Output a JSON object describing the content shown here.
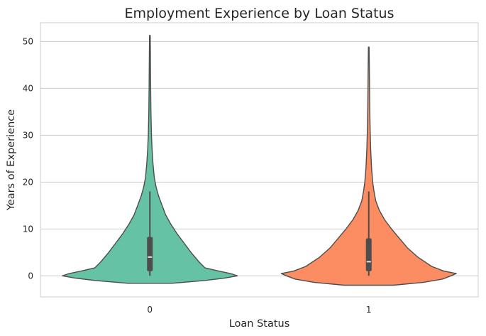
{
  "chart_data": {
    "type": "violin",
    "title": "Employment Experience by Loan Status",
    "xlabel": "Loan Status",
    "ylabel": "Years of Experience",
    "categories": [
      "0",
      "1"
    ],
    "ylim": [
      -4.5,
      54
    ],
    "yticks": [
      0,
      10,
      20,
      30,
      40,
      50
    ],
    "grid": true,
    "colors": [
      "#66c2a5",
      "#fc8d62"
    ],
    "outline_color": "#4d4d4d",
    "violins": [
      {
        "category": "0",
        "min": -1.6,
        "max": 51.3,
        "q1": 1,
        "median": 4,
        "q3": 8.3,
        "whisker_low": 0,
        "whisker_high": 18,
        "profile": [
          [
            -1.6,
            0.25
          ],
          [
            -1.0,
            0.62
          ],
          [
            -0.5,
            0.85
          ],
          [
            0.0,
            1.0
          ],
          [
            0.5,
            0.92
          ],
          [
            1.0,
            0.79
          ],
          [
            1.7,
            0.63
          ],
          [
            3,
            0.56
          ],
          [
            5,
            0.47
          ],
          [
            7,
            0.39
          ],
          [
            9,
            0.31
          ],
          [
            11,
            0.24
          ],
          [
            13,
            0.18
          ],
          [
            15,
            0.14
          ],
          [
            17,
            0.1
          ],
          [
            19,
            0.07
          ],
          [
            21,
            0.05
          ],
          [
            24,
            0.035
          ],
          [
            27,
            0.025
          ],
          [
            30,
            0.018
          ],
          [
            35,
            0.012
          ],
          [
            40,
            0.009
          ],
          [
            45,
            0.007
          ],
          [
            51.3,
            0.004
          ]
        ]
      },
      {
        "category": "1",
        "min": -2.0,
        "max": 48.8,
        "q1": 1,
        "median": 3,
        "q3": 8,
        "whisker_low": 0,
        "whisker_high": 18,
        "profile": [
          [
            -2.0,
            0.28
          ],
          [
            -1.4,
            0.62
          ],
          [
            -0.7,
            0.84
          ],
          [
            0.0,
            0.94
          ],
          [
            0.5,
            1.0
          ],
          [
            1.0,
            0.86
          ],
          [
            2,
            0.72
          ],
          [
            4,
            0.56
          ],
          [
            6,
            0.44
          ],
          [
            8,
            0.35
          ],
          [
            10,
            0.26
          ],
          [
            12,
            0.18
          ],
          [
            14,
            0.12
          ],
          [
            16,
            0.08
          ],
          [
            18,
            0.06
          ],
          [
            20,
            0.045
          ],
          [
            23,
            0.032
          ],
          [
            27,
            0.022
          ],
          [
            31,
            0.016
          ],
          [
            36,
            0.011
          ],
          [
            42,
            0.008
          ],
          [
            48.8,
            0.004
          ]
        ]
      }
    ]
  }
}
